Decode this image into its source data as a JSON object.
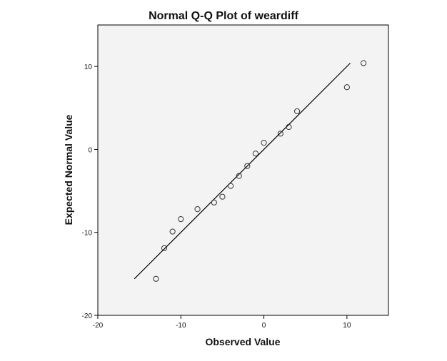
{
  "chart_data": {
    "type": "scatter",
    "title": "Normal Q-Q Plot of weardiff",
    "xlabel": "Observed Value",
    "ylabel": "Expected Normal Value",
    "xlim": [
      -20,
      15
    ],
    "ylim": [
      -20,
      15
    ],
    "xticks": [
      -20,
      -10,
      0,
      10
    ],
    "yticks": [
      -20,
      -10,
      0,
      10
    ],
    "grid": false,
    "points": [
      {
        "x": -13,
        "y": -15.6
      },
      {
        "x": -12,
        "y": -11.9
      },
      {
        "x": -11,
        "y": -9.9
      },
      {
        "x": -10,
        "y": -8.4
      },
      {
        "x": -8,
        "y": -7.2
      },
      {
        "x": -6,
        "y": -6.4
      },
      {
        "x": -5,
        "y": -5.7
      },
      {
        "x": -4,
        "y": -4.4
      },
      {
        "x": -3,
        "y": -3.2
      },
      {
        "x": -2,
        "y": -2.0
      },
      {
        "x": -1,
        "y": -0.5
      },
      {
        "x": 0,
        "y": 0.8
      },
      {
        "x": 2,
        "y": 1.9
      },
      {
        "x": 3,
        "y": 2.7
      },
      {
        "x": 4,
        "y": 4.6
      },
      {
        "x": 10,
        "y": 7.5
      },
      {
        "x": 12,
        "y": 10.4
      }
    ],
    "reference_line": {
      "x1": -15.6,
      "y1": -15.6,
      "x2": 10.4,
      "y2": 10.4
    },
    "colors": {
      "plot_bg": "#f3f3f3",
      "marker_stroke": "#333333",
      "line": "#000000"
    }
  }
}
